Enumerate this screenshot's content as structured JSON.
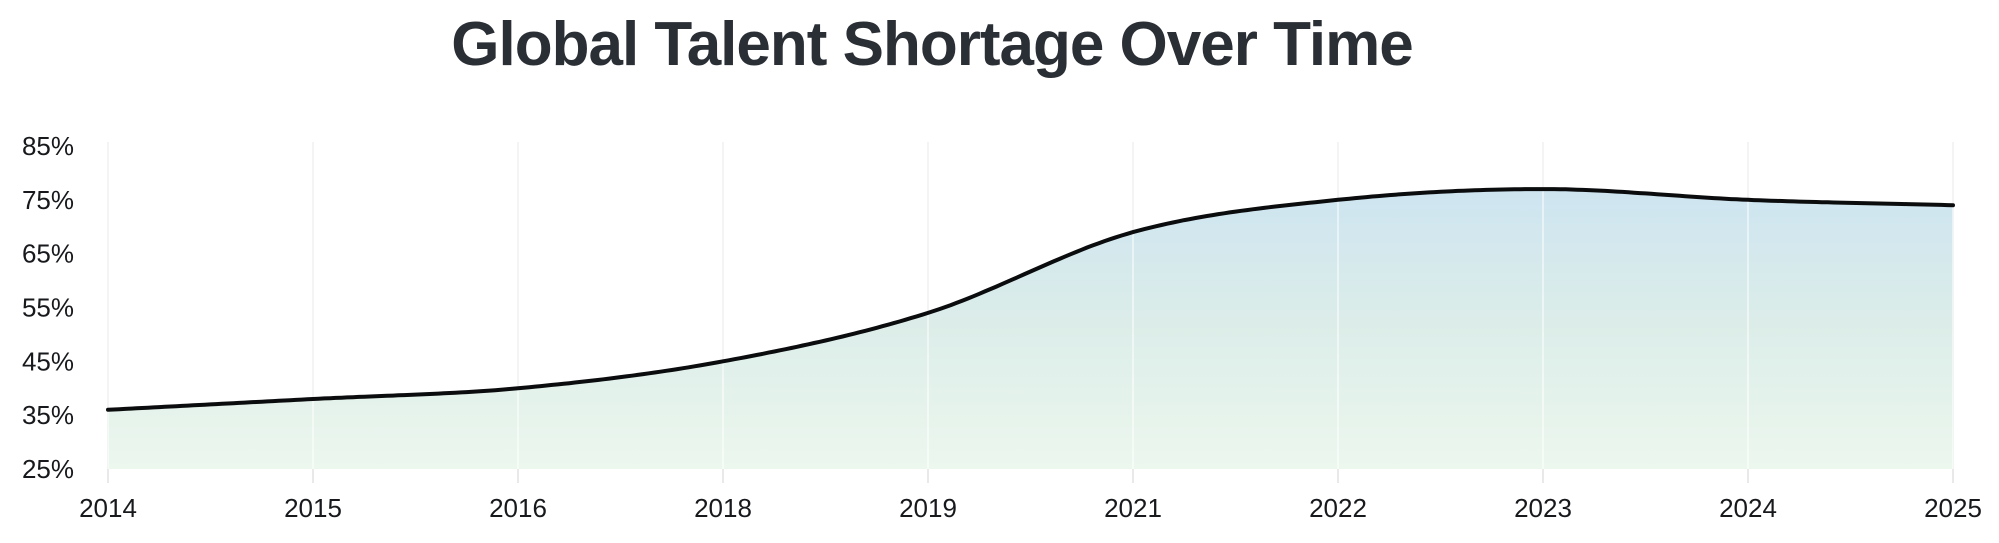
{
  "page": {
    "background_color": "#ffffff"
  },
  "title": "Global Talent Shortage Over Time",
  "chart_data": {
    "type": "area",
    "title": "Global Talent Shortage Over Time",
    "x_axis_type": "category",
    "categories": [
      "2014",
      "2015",
      "2016",
      "2018",
      "2019",
      "2021",
      "2022",
      "2023",
      "2024",
      "2025"
    ],
    "values": [
      36,
      38,
      40,
      45,
      54,
      69,
      75,
      77,
      75,
      74
    ],
    "unit": "%",
    "ylim": [
      25,
      85
    ],
    "y_ticks": [
      25,
      35,
      45,
      55,
      65,
      75,
      85
    ],
    "y_tick_labels": [
      "25%",
      "35%",
      "45%",
      "55%",
      "65%",
      "75%",
      "85%"
    ],
    "xlabel": "",
    "ylabel": "",
    "legend": "none",
    "grid": "vertical-only",
    "smoothing": "monotone-spline",
    "colors": {
      "line": "#0b0c0e",
      "area_gradient_top": "#c9e2f3",
      "area_gradient_mid": "#dcede9",
      "area_gradient_bottom": "#ecf7ee",
      "gridline": "#e9e9e9",
      "gridline_over_fill": "rgba(255,255,255,0.5)",
      "tick_text": "#17191c",
      "title_text": "#2a2e35"
    }
  }
}
